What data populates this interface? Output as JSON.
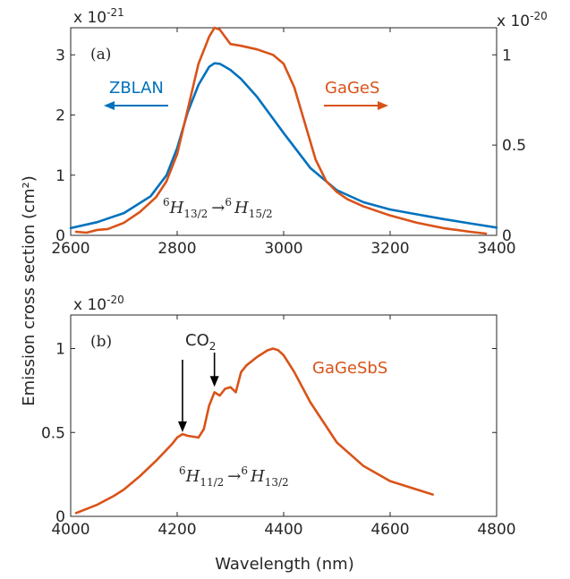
{
  "figure": {
    "ylabel": "Emission cross section (cm²)",
    "xlabel": "Wavelength (nm)"
  },
  "chart_data": [
    {
      "type": "line",
      "panel": "(a)",
      "xlim": [
        2600,
        3400
      ],
      "xticks": [
        2600,
        2800,
        3000,
        3200,
        3400
      ],
      "left_axis": {
        "multiplier": "x 10",
        "exponent": "-21",
        "ylim": [
          0,
          3.45
        ],
        "ticks": [
          0,
          1,
          2,
          3
        ],
        "tick_labels": [
          "0",
          "1",
          "2",
          "3"
        ]
      },
      "right_axis": {
        "multiplier": "x 10",
        "exponent": "-20",
        "ylim": [
          0,
          1.15
        ],
        "ticks": [
          0,
          0.5,
          1
        ],
        "tick_labels": [
          "0",
          "0.5",
          "1"
        ]
      },
      "transition": {
        "upper_sup": "6",
        "upper": "H",
        "upper_sub": "13/2",
        "arrow": "→",
        "lower_sup": "6",
        "lower": "H",
        "lower_sub": "15/2"
      },
      "series": [
        {
          "name": "ZBLAN",
          "axis": "left",
          "color": "#0072BD",
          "legend_arrow": "left",
          "x": [
            2600,
            2650,
            2700,
            2750,
            2780,
            2800,
            2820,
            2840,
            2860,
            2870,
            2880,
            2900,
            2920,
            2950,
            3000,
            3050,
            3100,
            3150,
            3200,
            3250,
            3300,
            3350,
            3400
          ],
          "y": [
            0.12,
            0.22,
            0.37,
            0.65,
            1.0,
            1.45,
            2.05,
            2.5,
            2.8,
            2.86,
            2.85,
            2.75,
            2.6,
            2.3,
            1.7,
            1.12,
            0.75,
            0.55,
            0.43,
            0.35,
            0.27,
            0.2,
            0.13
          ]
        },
        {
          "name": "GaGeS",
          "axis": "right",
          "color": "#D95319",
          "legend_arrow": "right",
          "x": [
            2610,
            2630,
            2650,
            2670,
            2700,
            2730,
            2760,
            2780,
            2800,
            2820,
            2840,
            2860,
            2870,
            2880,
            2890,
            2900,
            2920,
            2950,
            2980,
            3000,
            3020,
            3040,
            3060,
            3080,
            3100,
            3120,
            3150,
            3200,
            3250,
            3300,
            3350,
            3380
          ],
          "y": [
            0.02,
            0.015,
            0.03,
            0.035,
            0.07,
            0.13,
            0.21,
            0.3,
            0.45,
            0.7,
            0.95,
            1.1,
            1.15,
            1.14,
            1.1,
            1.06,
            1.05,
            1.03,
            1.0,
            0.95,
            0.82,
            0.62,
            0.42,
            0.3,
            0.24,
            0.2,
            0.16,
            0.11,
            0.07,
            0.04,
            0.02,
            0.01
          ]
        }
      ]
    },
    {
      "type": "line",
      "panel": "(b)",
      "xlim": [
        4000,
        4800
      ],
      "xticks": [
        4000,
        4200,
        4400,
        4600,
        4800
      ],
      "left_axis": {
        "multiplier": "x 10",
        "exponent": "-20",
        "ylim": [
          0,
          1.2
        ],
        "ticks": [
          0,
          0.5,
          1
        ],
        "tick_labels": [
          "0",
          "0.5",
          "1"
        ]
      },
      "transition": {
        "upper_sup": "6",
        "upper": "H",
        "upper_sub": "11/2",
        "arrow": "→",
        "lower_sup": "6",
        "lower": "H",
        "lower_sub": "13/2"
      },
      "annotation": {
        "text": "CO",
        "sub": "2",
        "arrows_at": [
          [
            4210,
            0.47
          ],
          [
            4270,
            0.74
          ]
        ]
      },
      "series": [
        {
          "name": "GaGeSbS",
          "axis": "left",
          "color": "#D95319",
          "x": [
            4010,
            4050,
            4080,
            4100,
            4130,
            4160,
            4190,
            4200,
            4210,
            4220,
            4240,
            4250,
            4260,
            4270,
            4280,
            4290,
            4300,
            4310,
            4320,
            4330,
            4350,
            4370,
            4380,
            4390,
            4400,
            4420,
            4450,
            4500,
            4550,
            4600,
            4650,
            4680
          ],
          "y": [
            0.02,
            0.07,
            0.12,
            0.16,
            0.24,
            0.33,
            0.43,
            0.47,
            0.49,
            0.48,
            0.47,
            0.52,
            0.66,
            0.74,
            0.72,
            0.76,
            0.77,
            0.74,
            0.86,
            0.9,
            0.95,
            0.99,
            1.0,
            0.99,
            0.96,
            0.86,
            0.68,
            0.44,
            0.3,
            0.21,
            0.16,
            0.13
          ]
        }
      ]
    }
  ]
}
